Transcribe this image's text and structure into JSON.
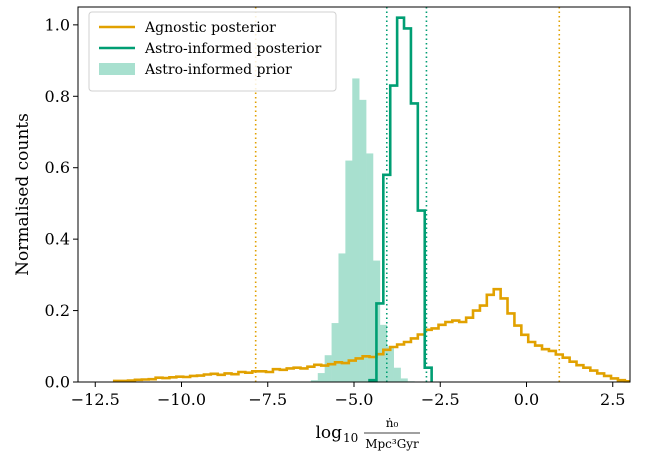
{
  "colors": {
    "agnostic": "#E1A100",
    "astro": "#009E73",
    "prior": "#A8E0CF"
  },
  "chart_data": {
    "type": "histogram",
    "title": "",
    "xlabel": "log₁₀ ṅ₀ / (Mpc³ Gyr)",
    "xlabel_parts": {
      "prefix": "log",
      "sub": "10",
      "numerator": "ṅ₀",
      "denominator": "Mpc³Gyr"
    },
    "ylabel": "Normalised counts",
    "xlim": [
      -13.0,
      3.0
    ],
    "ylim": [
      0,
      1.05
    ],
    "xticks": [
      -12.5,
      -10.0,
      -7.5,
      -5.0,
      -2.5,
      0.0,
      2.5
    ],
    "xtick_labels": [
      "−12.5",
      "−10.0",
      "−7.5",
      "−5.0",
      "−2.5",
      "0.0",
      "2.5"
    ],
    "yticks": [
      0.0,
      0.2,
      0.4,
      0.6,
      0.8,
      1.0
    ],
    "ytick_labels": [
      "0.0",
      "0.2",
      "0.4",
      "0.6",
      "0.8",
      "1.0"
    ],
    "legend": {
      "placement": "top-left",
      "entries": [
        {
          "label": "Agnostic posterior",
          "style": "line",
          "series": "agnostic"
        },
        {
          "label": "Astro-informed posterior",
          "style": "line",
          "series": "astro"
        },
        {
          "label": "Astro-informed prior",
          "style": "patch",
          "series": "prior"
        }
      ]
    },
    "series": [
      {
        "key": "agnostic",
        "style": "step",
        "bin_edges": [
          -11.95,
          -11.75,
          -11.55,
          -11.35,
          -11.15,
          -10.95,
          -10.75,
          -10.55,
          -10.35,
          -10.15,
          -9.95,
          -9.75,
          -9.55,
          -9.35,
          -9.15,
          -8.95,
          -8.75,
          -8.55,
          -8.35,
          -8.15,
          -7.95,
          -7.75,
          -7.55,
          -7.35,
          -7.15,
          -6.95,
          -6.75,
          -6.55,
          -6.35,
          -6.15,
          -5.95,
          -5.75,
          -5.55,
          -5.35,
          -5.15,
          -4.95,
          -4.75,
          -4.55,
          -4.35,
          -4.15,
          -3.95,
          -3.75,
          -3.55,
          -3.35,
          -3.15,
          -2.95,
          -2.75,
          -2.55,
          -2.35,
          -2.15,
          -1.95,
          -1.75,
          -1.55,
          -1.35,
          -1.15,
          -0.95,
          -0.75,
          -0.55,
          -0.35,
          -0.15,
          0.05,
          0.25,
          0.45,
          0.65,
          0.85,
          1.05,
          1.25,
          1.45,
          1.65,
          1.85,
          2.05,
          2.25,
          2.45,
          2.65,
          2.85,
          3.0
        ],
        "values": [
          0.003,
          0.003,
          0.004,
          0.006,
          0.007,
          0.008,
          0.012,
          0.011,
          0.013,
          0.015,
          0.014,
          0.017,
          0.018,
          0.021,
          0.023,
          0.02,
          0.024,
          0.022,
          0.028,
          0.026,
          0.03,
          0.03,
          0.028,
          0.036,
          0.034,
          0.038,
          0.04,
          0.038,
          0.043,
          0.048,
          0.046,
          0.05,
          0.055,
          0.053,
          0.06,
          0.066,
          0.072,
          0.07,
          0.078,
          0.09,
          0.098,
          0.105,
          0.112,
          0.122,
          0.133,
          0.146,
          0.15,
          0.16,
          0.168,
          0.172,
          0.168,
          0.18,
          0.2,
          0.214,
          0.244,
          0.26,
          0.234,
          0.192,
          0.158,
          0.132,
          0.112,
          0.102,
          0.092,
          0.087,
          0.077,
          0.068,
          0.057,
          0.047,
          0.04,
          0.032,
          0.024,
          0.017,
          0.01,
          0.005,
          0.002
        ]
      },
      {
        "key": "astro",
        "style": "step",
        "bin_edges": [
          -4.55,
          -4.35,
          -4.15,
          -3.95,
          -3.75,
          -3.55,
          -3.35,
          -3.15,
          -2.95,
          -2.75
        ],
        "values": [
          0.005,
          0.22,
          0.58,
          0.83,
          1.02,
          0.99,
          0.78,
          0.48,
          0.04
        ]
      },
      {
        "key": "prior",
        "style": "filled",
        "bin_edges": [
          -6.25,
          -6.05,
          -5.85,
          -5.65,
          -5.45,
          -5.25,
          -5.05,
          -4.85,
          -4.65,
          -4.45,
          -4.25,
          -4.05,
          -3.85,
          -3.65,
          -3.45,
          -3.25
        ],
        "values": [
          0.005,
          0.025,
          0.075,
          0.165,
          0.36,
          0.62,
          0.85,
          0.79,
          0.64,
          0.34,
          0.16,
          0.1,
          0.04,
          0.01,
          0.002
        ]
      }
    ],
    "vlines": [
      {
        "series": "agnostic",
        "style": "dotted",
        "x": -7.85
      },
      {
        "series": "agnostic",
        "style": "dotted",
        "x": 0.95
      },
      {
        "series": "astro",
        "style": "dotted",
        "x": -4.05
      },
      {
        "series": "astro",
        "style": "dotted",
        "x": -2.9
      }
    ]
  }
}
